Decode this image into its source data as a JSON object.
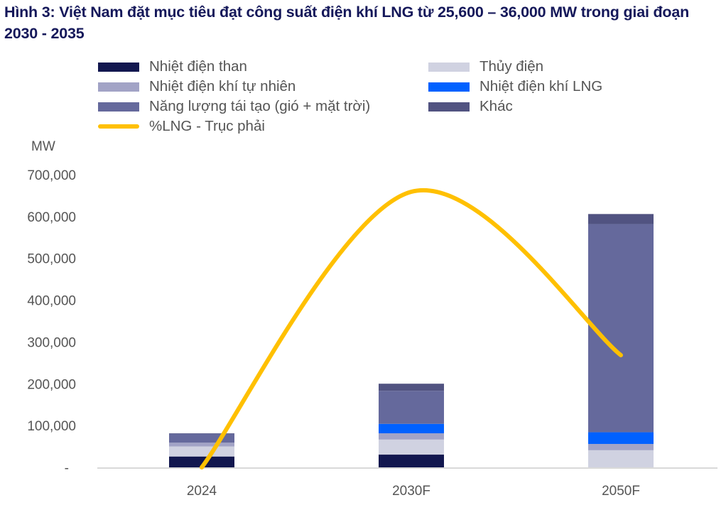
{
  "title": "Hình 3:  Việt Nam đặt mục tiêu đạt công suất điện khí LNG từ 25,600 – 36,000 MW trong giai đoạn 2030 - 2035",
  "chart_data": {
    "type": "bar",
    "stacked": true,
    "title": "Hình 3:  Việt Nam đặt mục tiêu đạt công suất điện khí LNG từ 25,600 – 36,000 MW trong giai đoạn 2030 - 2035",
    "ylabel": "MW",
    "ylim": [
      0,
      700000
    ],
    "y_ticks": [
      "-",
      "100,000",
      "200,000",
      "300,000",
      "400,000",
      "500,000",
      "600,000",
      "700,000"
    ],
    "categories": [
      "2024",
      "2030F",
      "2050F"
    ],
    "legend_position": "top",
    "grid": false,
    "series": [
      {
        "name": "Nhiệt điện than",
        "color": "#12174f",
        "values": [
          26000,
          30500,
          0
        ]
      },
      {
        "name": "Thủy điện",
        "color": "#d0d2e1",
        "values": [
          24000,
          36000,
          41000
        ]
      },
      {
        "name": "Nhiệt điện khí tự nhiên",
        "color": "#a2a3c6",
        "values": [
          9000,
          15000,
          15000
        ]
      },
      {
        "name": "Nhiệt điện khí LNG",
        "color": "#0061ff",
        "values": [
          0,
          22600,
          28000
        ]
      },
      {
        "name": "Năng lượng tái tạo (gió + mặt trời)",
        "color": "#65699c",
        "values": [
          21500,
          79000,
          498000
        ]
      },
      {
        "name": "Khác",
        "color": "#515381",
        "values": [
          1000,
          17000,
          24000
        ]
      }
    ],
    "line_series": {
      "name": "%LNG - Trục phải",
      "color": "#ffc000",
      "axis": "right",
      "unit": "%",
      "values": [
        0,
        11.3,
        4.6
      ],
      "ylim_right": [
        0,
        12
      ]
    }
  }
}
